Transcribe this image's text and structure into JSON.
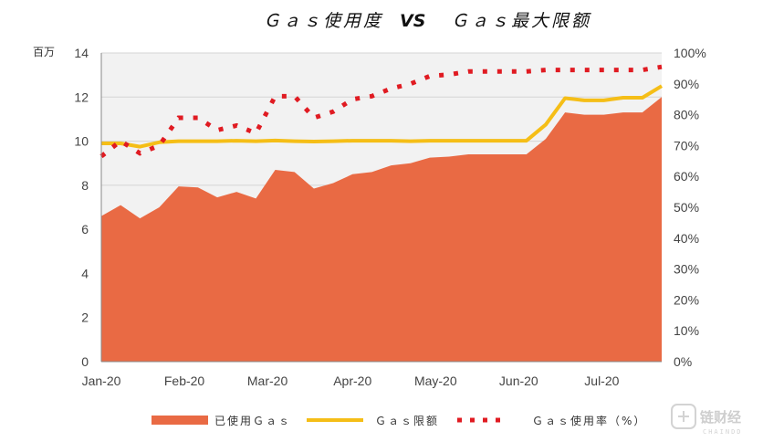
{
  "chart_data": {
    "type": "area",
    "title_left": "Ｇａｓ使用度",
    "title_vs": "VS",
    "title_right": "Ｇａｓ最大限额",
    "y_left_unit": "百万",
    "y_left_ticks": [
      "0",
      "2",
      "4",
      "6",
      "8",
      "10",
      "12",
      "14"
    ],
    "y_right_ticks": [
      "0%",
      "10%",
      "20%",
      "30%",
      "40%",
      "50%",
      "60%",
      "70%",
      "80%",
      "90%",
      "100%"
    ],
    "x_ticks": [
      "Jan-20",
      "Feb-20",
      "Mar-20",
      "Apr-20",
      "May-20",
      "Jun-20",
      "Jul-20"
    ],
    "ylim_left": [
      0,
      14
    ],
    "ylim_right": [
      0,
      100
    ],
    "legend_position": "bottom",
    "grid": "horizontal",
    "colors": {
      "area": "#e96a44",
      "limit": "#f5be17",
      "ratio": "#e01b22",
      "plot_bg": "#f2f2f2",
      "grid": "#d4d4d4"
    },
    "series": [
      {
        "name": "已使用Ｇａｓ",
        "kind": "area",
        "axis": "left",
        "values": [
          6.6,
          7.1,
          6.5,
          7.0,
          7.95,
          7.9,
          7.45,
          7.7,
          7.4,
          8.7,
          8.6,
          7.85,
          8.1,
          8.5,
          8.6,
          8.9,
          9.0,
          9.25,
          9.3,
          9.4,
          9.4,
          9.4,
          9.4,
          10.1,
          11.3,
          11.2,
          11.2,
          11.3,
          11.3,
          12.0
        ]
      },
      {
        "name": "Ｇａｓ限额",
        "kind": "line",
        "axis": "left",
        "values": [
          9.9,
          9.9,
          9.75,
          9.95,
          10.0,
          10.0,
          10.0,
          10.02,
          10.0,
          10.03,
          10.0,
          9.98,
          10.0,
          10.02,
          10.02,
          10.02,
          10.0,
          10.02,
          10.02,
          10.02,
          10.02,
          10.02,
          10.02,
          10.75,
          11.95,
          11.85,
          11.85,
          11.97,
          11.97,
          12.5
        ]
      },
      {
        "name": "Ｇａｓ使用率（%）",
        "kind": "dotted-line",
        "axis": "right",
        "values": [
          66.5,
          71.5,
          67.5,
          70,
          79,
          79,
          75,
          76.5,
          74,
          86,
          86,
          79,
          81,
          85,
          86,
          88.5,
          90,
          92.5,
          93,
          94,
          94,
          94,
          94,
          94.5,
          94.5,
          94.5,
          94.5,
          94.5,
          94.5,
          95.5
        ]
      }
    ]
  },
  "watermark": {
    "text": "链财经",
    "sub": "CHAINDD",
    "icon": "chain-logo-icon"
  }
}
